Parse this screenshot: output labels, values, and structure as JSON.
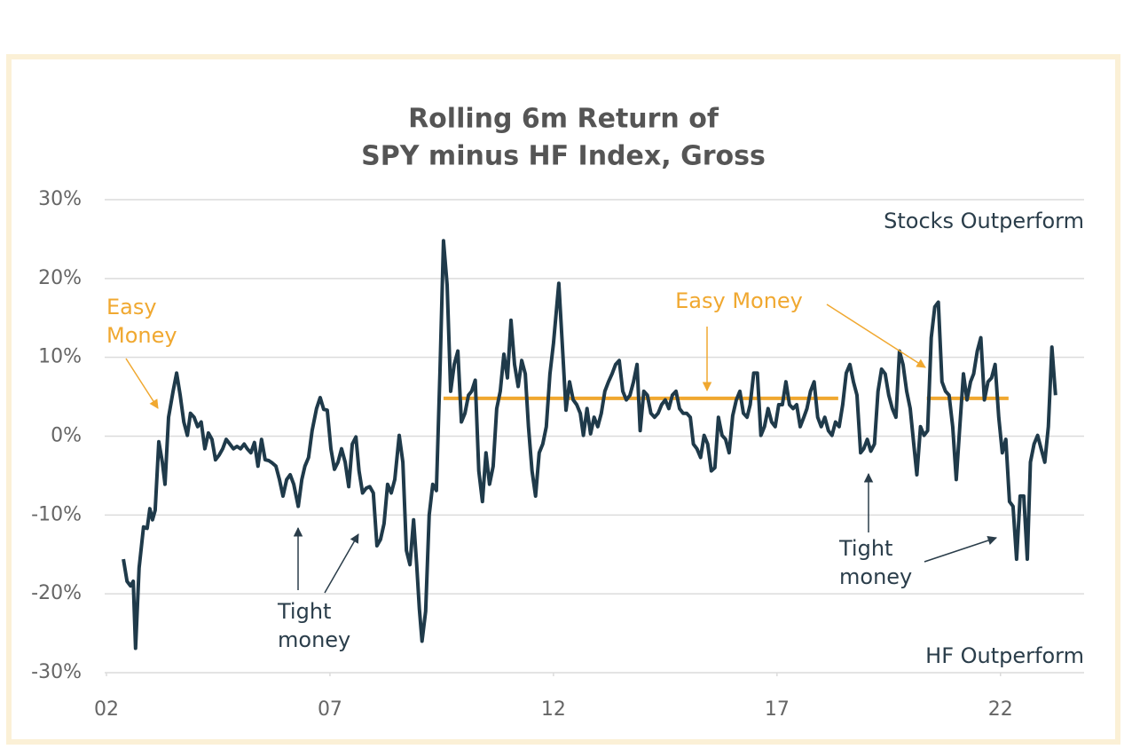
{
  "chart_data": {
    "type": "line",
    "title": [
      "Rolling 6m Return of",
      "SPY minus HF Index, Gross"
    ],
    "xlim": [
      2002,
      2023.87
    ],
    "xticks": [
      {
        "value": 2002,
        "label": "02"
      },
      {
        "value": 2007,
        "label": "07"
      },
      {
        "value": 2012,
        "label": "12"
      },
      {
        "value": 2017,
        "label": "17"
      },
      {
        "value": 2022,
        "label": "22"
      }
    ],
    "ylim": [
      -30,
      30
    ],
    "yticks": [
      {
        "value": -30,
        "label": "-30%"
      },
      {
        "value": -20,
        "label": "-20%"
      },
      {
        "value": -10,
        "label": "-10%"
      },
      {
        "value": 0,
        "label": "0%"
      },
      {
        "value": 10,
        "label": "10%"
      },
      {
        "value": 20,
        "label": "20%"
      },
      {
        "value": 30,
        "label": "30%"
      }
    ],
    "grid": true,
    "series": [
      {
        "color": "#1f3a4a",
        "x": [
          2002.38,
          2002.46,
          2002.54,
          2002.6,
          2002.65,
          2002.73,
          2002.83,
          2002.91,
          2002.97,
          2003.03,
          2003.09,
          2003.17,
          2003.25,
          2003.31,
          2003.39,
          2003.49,
          2003.57,
          2003.65,
          2003.73,
          2003.81,
          2003.88,
          2003.96,
          2004.04,
          2004.12,
          2004.2,
          2004.28,
          2004.36,
          2004.44,
          2004.52,
          2004.6,
          2004.68,
          2004.76,
          2004.84,
          2004.92,
          2005.0,
          2005.08,
          2005.15,
          2005.23,
          2005.31,
          2005.39,
          2005.47,
          2005.55,
          2005.63,
          2005.71,
          2005.79,
          2005.87,
          2005.95,
          2006.03,
          2006.11,
          2006.19,
          2006.29,
          2006.37,
          2006.44,
          2006.52,
          2006.6,
          2006.7,
          2006.78,
          2006.86,
          2006.94,
          2007.02,
          2007.1,
          2007.18,
          2007.26,
          2007.34,
          2007.42,
          2007.5,
          2007.58,
          2007.65,
          2007.73,
          2007.81,
          2007.89,
          2007.97,
          2008.05,
          2008.13,
          2008.21,
          2008.29,
          2008.37,
          2008.45,
          2008.55,
          2008.63,
          2008.71,
          2008.79,
          2008.87,
          2008.94,
          2009.0,
          2009.06,
          2009.14,
          2009.22,
          2009.3,
          2009.38,
          2009.46,
          2009.54,
          2009.62,
          2009.7,
          2009.78,
          2009.86,
          2009.94,
          2010.02,
          2010.1,
          2010.17,
          2010.25,
          2010.33,
          2010.41,
          2010.49,
          2010.57,
          2010.65,
          2010.73,
          2010.81,
          2010.89,
          2010.97,
          2011.05,
          2011.13,
          2011.21,
          2011.29,
          2011.37,
          2011.44,
          2011.52,
          2011.6,
          2011.68,
          2011.76,
          2011.84,
          2011.92,
          2012.0,
          2012.12,
          2012.2,
          2012.28,
          2012.36,
          2012.44,
          2012.52,
          2012.6,
          2012.67,
          2012.75,
          2012.83,
          2012.91,
          2012.99,
          2013.07,
          2013.15,
          2013.23,
          2013.31,
          2013.39,
          2013.47,
          2013.55,
          2013.63,
          2013.71,
          2013.79,
          2013.87,
          2013.94,
          2014.02,
          2014.1,
          2014.18,
          2014.26,
          2014.34,
          2014.42,
          2014.5,
          2014.58,
          2014.66,
          2014.74,
          2014.82,
          2014.9,
          2014.98,
          2015.06,
          2015.13,
          2015.21,
          2015.29,
          2015.37,
          2015.45,
          2015.53,
          2015.61,
          2015.69,
          2015.77,
          2015.85,
          2015.93,
          2016.01,
          2016.09,
          2016.17,
          2016.25,
          2016.33,
          2016.4,
          2016.48,
          2016.56,
          2016.64,
          2016.72,
          2016.8,
          2016.88,
          2016.96,
          2017.04,
          2017.12,
          2017.2,
          2017.28,
          2017.36,
          2017.44,
          2017.52,
          2017.6,
          2017.67,
          2017.75,
          2017.83,
          2017.91,
          2017.99,
          2018.07,
          2018.15,
          2018.23,
          2018.31,
          2018.39,
          2018.47,
          2018.55,
          2018.63,
          2018.71,
          2018.79,
          2018.87,
          2018.94,
          2019.02,
          2019.1,
          2019.18,
          2019.26,
          2019.34,
          2019.42,
          2019.5,
          2019.58,
          2019.66,
          2019.74,
          2019.82,
          2019.9,
          2019.98,
          2020.06,
          2020.13,
          2020.21,
          2020.29,
          2020.37,
          2020.45,
          2020.53,
          2020.61,
          2020.69,
          2020.77,
          2020.85,
          2020.93,
          2021.01,
          2021.09,
          2021.17,
          2021.25,
          2021.33,
          2021.4,
          2021.48,
          2021.56,
          2021.64,
          2021.72,
          2021.8,
          2021.88,
          2021.96,
          2022.04,
          2022.12,
          2022.2,
          2022.28,
          2022.36,
          2022.44,
          2022.52,
          2022.6,
          2022.67,
          2022.75,
          2022.83,
          2022.91,
          2022.99,
          2023.07,
          2023.15,
          2023.23
        ],
        "values": [
          -15.6,
          -18.4,
          -19.0,
          -18.4,
          -26.9,
          -16.7,
          -11.5,
          -11.7,
          -9.2,
          -10.6,
          -9.4,
          -0.7,
          -3.3,
          -6.1,
          2.4,
          5.7,
          8.0,
          5.2,
          1.8,
          0.1,
          2.9,
          2.4,
          1.2,
          1.8,
          -1.6,
          0.4,
          -0.4,
          -3.0,
          -2.4,
          -1.6,
          -0.4,
          -1.0,
          -1.6,
          -1.3,
          -1.6,
          -1.0,
          -1.6,
          -2.1,
          -0.8,
          -3.8,
          -0.4,
          -3.0,
          -3.1,
          -3.4,
          -3.8,
          -5.5,
          -7.6,
          -5.5,
          -4.9,
          -6.1,
          -8.9,
          -5.5,
          -3.8,
          -2.7,
          0.7,
          3.5,
          4.9,
          3.4,
          3.3,
          -1.6,
          -4.2,
          -3.3,
          -1.6,
          -3.3,
          -6.4,
          -1.0,
          -0.1,
          -4.4,
          -7.2,
          -6.6,
          -6.4,
          -7.2,
          -13.9,
          -13.1,
          -11.1,
          -6.1,
          -7.2,
          -5.5,
          0.1,
          -3.3,
          -14.5,
          -16.3,
          -10.6,
          -16.3,
          -21.9,
          -26.0,
          -22.2,
          -10.0,
          -6.1,
          -6.9,
          8.0,
          24.8,
          19.2,
          5.7,
          9.1,
          10.8,
          1.8,
          2.9,
          5.2,
          5.7,
          7.1,
          -4.4,
          -8.3,
          -2.1,
          -6.1,
          -3.8,
          3.5,
          5.7,
          10.4,
          7.4,
          14.7,
          9.1,
          6.3,
          9.6,
          7.9,
          1.2,
          -4.4,
          -7.6,
          -2.1,
          -1.0,
          1.2,
          7.9,
          11.8,
          19.4,
          11.3,
          3.3,
          6.9,
          4.6,
          4.0,
          2.9,
          0.1,
          3.5,
          0.3,
          2.4,
          1.2,
          2.9,
          5.7,
          6.9,
          7.9,
          9.1,
          9.6,
          5.7,
          4.6,
          5.2,
          6.9,
          9.1,
          0.7,
          5.7,
          5.2,
          2.9,
          2.4,
          2.9,
          4.0,
          4.6,
          3.5,
          5.2,
          5.7,
          3.5,
          2.9,
          2.9,
          2.4,
          -1.0,
          -1.6,
          -2.7,
          0.1,
          -1.0,
          -4.4,
          -4.0,
          2.4,
          0.1,
          -0.4,
          -2.1,
          2.6,
          4.6,
          5.7,
          2.9,
          2.4,
          4.0,
          8.0,
          8.0,
          0.1,
          1.2,
          3.5,
          1.8,
          1.2,
          4.0,
          4.0,
          6.9,
          4.0,
          3.5,
          4.0,
          1.2,
          2.4,
          3.5,
          5.7,
          6.9,
          2.4,
          1.2,
          2.4,
          0.7,
          0.1,
          1.8,
          1.2,
          4.0,
          8.0,
          9.1,
          6.9,
          5.2,
          -2.1,
          -1.6,
          -0.4,
          -1.9,
          -1.0,
          5.7,
          8.5,
          7.9,
          5.2,
          3.5,
          2.4,
          10.8,
          9.1,
          5.7,
          3.5,
          -1.0,
          -4.9,
          1.2,
          0.1,
          0.7,
          12.5,
          16.4,
          17.0,
          6.9,
          5.7,
          5.2,
          1.2,
          -5.5,
          1.2,
          7.9,
          4.6,
          6.9,
          7.9,
          10.8,
          12.5,
          4.6,
          6.9,
          7.4,
          9.1,
          2.4,
          -2.1,
          -0.4,
          -8.3,
          -8.9,
          -15.6,
          -7.6,
          -7.6,
          -15.6,
          -3.3,
          -1.0,
          0.1,
          -1.6,
          -3.3,
          1.2,
          11.3,
          5.2
        ]
      }
    ],
    "reference_lines": [
      {
        "x": [
          2009.54,
          2018.37
        ],
        "y": 4.8,
        "color": "#f0a830"
      },
      {
        "x": [
          2020.35,
          2022.18
        ],
        "y": 4.8,
        "color": "#f0a830"
      }
    ],
    "annotations": [
      {
        "text": [
          "Easy",
          "Money"
        ],
        "color": "#f0a830"
      },
      {
        "text": [
          "Easy Money"
        ],
        "color": "#f0a830"
      },
      {
        "text": [
          "Tight",
          "money"
        ],
        "color": "#2a3d4a"
      },
      {
        "text": [
          "Tight",
          "money"
        ],
        "color": "#2a3d4a"
      },
      {
        "text": [
          "Stocks Outperform"
        ],
        "color": "#2a3d4a"
      },
      {
        "text": [
          "HF Outperform"
        ],
        "color": "#2a3d4a"
      }
    ]
  }
}
